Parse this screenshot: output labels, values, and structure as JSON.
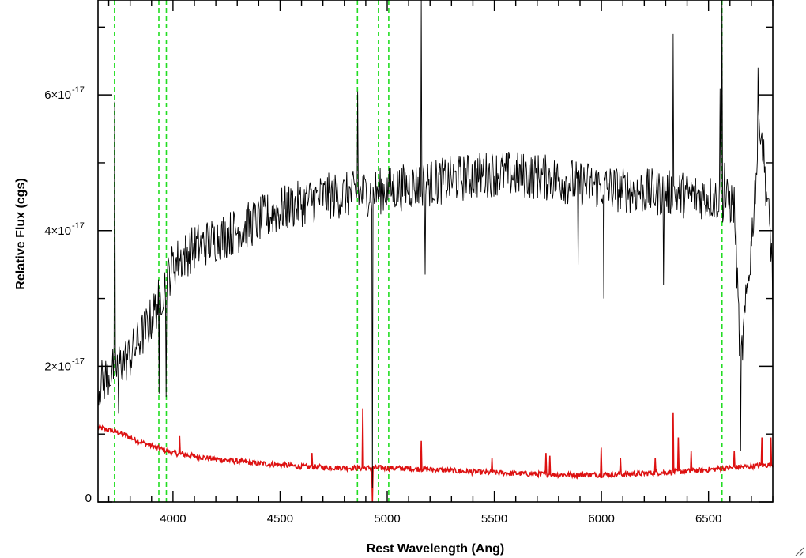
{
  "chart_data": {
    "type": "line",
    "xlabel": "Rest Wavelength (Ang)",
    "ylabel": "Relative Flux (cgs)",
    "xlim": [
      3650,
      6800
    ],
    "ylim": [
      0,
      7.4e-17
    ],
    "x_ticks": [
      {
        "value": 4000,
        "label": "4000"
      },
      {
        "value": 4500,
        "label": "4500"
      },
      {
        "value": 5000,
        "label": "5000"
      },
      {
        "value": 5500,
        "label": "5500"
      },
      {
        "value": 6000,
        "label": "6000"
      },
      {
        "value": 6500,
        "label": "6500"
      }
    ],
    "y_ticks": [
      {
        "value": 0,
        "mantissa": "0",
        "exponent": ""
      },
      {
        "value": 2e-17,
        "mantissa": "2×10",
        "exponent": "-17"
      },
      {
        "value": 4e-17,
        "mantissa": "4×10",
        "exponent": "-17"
      },
      {
        "value": 6e-17,
        "mantissa": "6×10",
        "exponent": "-17"
      }
    ],
    "colors": {
      "spectrum": "#000000",
      "error": "#dd1111",
      "marker_lines": "#22dd22",
      "frame": "#000000"
    },
    "grid": false,
    "vertical_markers": [
      3727,
      3934,
      3969,
      4861,
      4959,
      5007,
      6563
    ],
    "series": [
      {
        "role": "observed spectrum",
        "color": "#000000",
        "continuum_knots": [
          [
            3650,
            1.7e-17
          ],
          [
            3720,
            1.95e-17
          ],
          [
            3800,
            2.15e-17
          ],
          [
            3900,
            2.7e-17
          ],
          [
            4000,
            3.5e-17
          ],
          [
            4100,
            3.75e-17
          ],
          [
            4300,
            4e-17
          ],
          [
            4500,
            4.3e-17
          ],
          [
            4700,
            4.5e-17
          ],
          [
            4900,
            4.55e-17
          ],
          [
            5100,
            4.65e-17
          ],
          [
            5300,
            4.75e-17
          ],
          [
            5500,
            4.85e-17
          ],
          [
            5700,
            4.8e-17
          ],
          [
            5900,
            4.7e-17
          ],
          [
            6100,
            4.6e-17
          ],
          [
            6300,
            4.55e-17
          ],
          [
            6500,
            4.5e-17
          ],
          [
            6620,
            4.4e-17
          ],
          [
            6650,
            2e-17
          ],
          [
            6700,
            3.8e-17
          ],
          [
            6740,
            5.7e-17
          ],
          [
            6800,
            3.5e-17
          ]
        ],
        "noise_amplitude": 3.5e-18,
        "features": [
          {
            "x": 3727,
            "y": 5.9e-17
          },
          {
            "x": 3745,
            "y": 1.3e-17
          },
          {
            "x": 3934,
            "y": 1.6e-17
          },
          {
            "x": 3969,
            "y": 1.55e-17
          },
          {
            "x": 4861,
            "y": 6.05e-17
          },
          {
            "x": 4930,
            "y": 2e-18
          },
          {
            "x": 5160,
            "y": 7.4e-17
          },
          {
            "x": 5176,
            "y": 3.35e-17
          },
          {
            "x": 5890,
            "y": 3.5e-17
          },
          {
            "x": 6010,
            "y": 3e-17
          },
          {
            "x": 6290,
            "y": 3.2e-17
          },
          {
            "x": 6335,
            "y": 6.9e-17
          },
          {
            "x": 6555,
            "y": 6.1e-17
          },
          {
            "x": 6563,
            "y": 7.4e-17
          },
          {
            "x": 6575,
            "y": 5e-17
          },
          {
            "x": 6650,
            "y": 7.5e-18
          },
          {
            "x": 6730,
            "y": 6.4e-17
          },
          {
            "x": 6800,
            "y": 2.6e-17
          }
        ]
      },
      {
        "role": "error spectrum",
        "color": "#dd1111",
        "continuum_knots": [
          [
            3650,
            1.1e-17
          ],
          [
            3750,
            1.02e-17
          ],
          [
            3850,
            8.8e-18
          ],
          [
            4000,
            7.2e-18
          ],
          [
            4200,
            6.3e-18
          ],
          [
            4400,
            5.7e-18
          ],
          [
            4600,
            5.2e-18
          ],
          [
            4800,
            5e-18
          ],
          [
            5000,
            5e-18
          ],
          [
            5200,
            4.8e-18
          ],
          [
            5400,
            4.4e-18
          ],
          [
            5600,
            4.2e-18
          ],
          [
            5800,
            4e-18
          ],
          [
            6000,
            4e-18
          ],
          [
            6200,
            4.2e-18
          ],
          [
            6400,
            4.5e-18
          ],
          [
            6600,
            5e-18
          ],
          [
            6800,
            5.5e-18
          ]
        ],
        "noise_amplitude": 4e-19,
        "features": [
          {
            "x": 4030,
            "y": 9.7e-18
          },
          {
            "x": 4650,
            "y": 7.2e-18
          },
          {
            "x": 4885,
            "y": 1.38e-17
          },
          {
            "x": 4930,
            "y": 0.0
          },
          {
            "x": 5160,
            "y": 9e-18
          },
          {
            "x": 5490,
            "y": 6.5e-18
          },
          {
            "x": 5740,
            "y": 7.2e-18
          },
          {
            "x": 5760,
            "y": 6.8e-18
          },
          {
            "x": 6000,
            "y": 8e-18
          },
          {
            "x": 6090,
            "y": 6.5e-18
          },
          {
            "x": 6250,
            "y": 6.5e-18
          },
          {
            "x": 6335,
            "y": 1.32e-17
          },
          {
            "x": 6360,
            "y": 9.5e-18
          },
          {
            "x": 6420,
            "y": 7.5e-18
          },
          {
            "x": 6620,
            "y": 7.5e-18
          },
          {
            "x": 6750,
            "y": 9.5e-18
          },
          {
            "x": 6790,
            "y": 9.5e-18
          }
        ]
      }
    ]
  }
}
